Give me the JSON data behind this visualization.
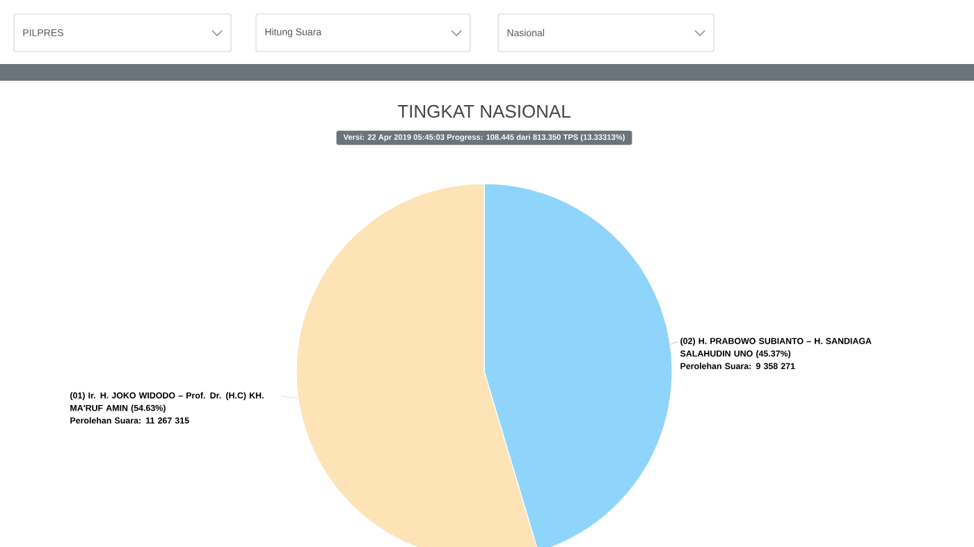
{
  "chart_data": {
    "type": "pie",
    "title": "TINGKAT NASIONAL",
    "subtitle": "Versi: 22 Apr 2019 05:45:03 Progress: 108.445 dari 813.350 TPS (13.33313%)",
    "categories": [
      "(02) H. PRABOWO SUBIANTO – H. SANDIAGA SALAHUDIN UNO (45.37%)",
      "(01) Ir. H. JOKO WIDODO – Prof. Dr. (H.C) KH. MA'RUF AMIN (54.63%)"
    ],
    "values": [
      9358271,
      11267315
    ],
    "value_labels": [
      "Perolehan Suara: 9 358 271",
      "Perolehan Suara: 11 267 315"
    ],
    "colors": [
      "#8fd4fb",
      "#fde3b6"
    ],
    "annotations": [
      "PILPRES",
      "Hitung Suara",
      "Nasional"
    ]
  }
}
